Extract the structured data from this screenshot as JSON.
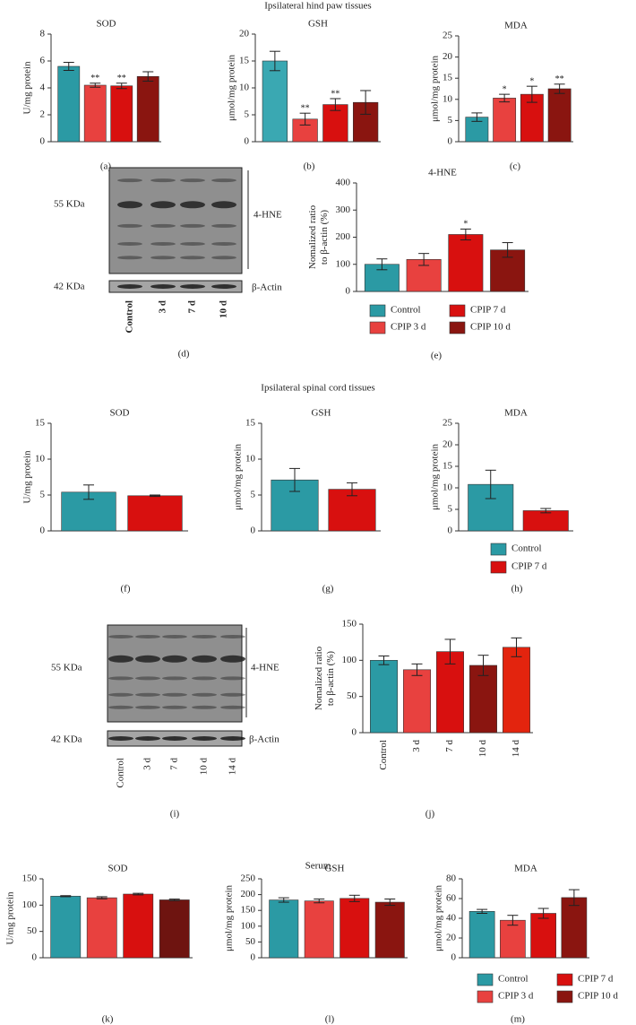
{
  "section_titles": [
    "Ipsilateral hind paw tissues",
    "Ipsilateral spinal cord tissues",
    "Serum"
  ],
  "chart_data": [
    {
      "type": "bar",
      "label": "(a)",
      "title": "SOD",
      "y_label": "U/mg protein",
      "values": [
        5.6,
        4.2,
        4.15,
        4.85
      ],
      "errors": [
        0.3,
        0.15,
        0.2,
        0.35
      ],
      "significance": [
        null,
        "**",
        "**",
        null
      ],
      "colors": [
        "#2b9aa4",
        "#e8413f",
        "#d8100f",
        "#8a1510"
      ],
      "ylim": [
        0,
        8
      ],
      "yticks": [
        0,
        2,
        4,
        6,
        8
      ]
    },
    {
      "type": "bar",
      "label": "(b)",
      "title": "GSH",
      "y_label": "μmol/mg protein",
      "values": [
        15,
        4.2,
        6.9,
        7.3
      ],
      "errors": [
        1.8,
        1.1,
        1.1,
        2.2
      ],
      "significance": [
        null,
        "**",
        "**",
        null
      ],
      "colors": [
        "#3aa8b2",
        "#e8413f",
        "#d8100f",
        "#8a1510"
      ],
      "ylim": [
        0,
        20
      ],
      "yticks": [
        0,
        5,
        10,
        15,
        20
      ]
    },
    {
      "type": "bar",
      "label": "(c)",
      "title": "MDA",
      "y_label": "μmol/mg protein",
      "values": [
        5.8,
        10.3,
        11.2,
        12.5
      ],
      "errors": [
        1,
        0.9,
        1.9,
        1.1
      ],
      "significance": [
        null,
        "*",
        "*",
        "**"
      ],
      "colors": [
        "#2b9aa4",
        "#e8413f",
        "#d8100f",
        "#8a1510"
      ],
      "ylim": [
        0,
        25
      ],
      "yticks": [
        0,
        5,
        10,
        15,
        20,
        25
      ]
    },
    {
      "type": "bar",
      "label": "(e)",
      "title": "4-HNE",
      "y_label": [
        "Nomalized ratio",
        "to β-actin (%)"
      ],
      "values": [
        100,
        118,
        210,
        153
      ],
      "errors": [
        20,
        22,
        20,
        27
      ],
      "significance": [
        null,
        null,
        "*",
        null
      ],
      "colors": [
        "#2b9aa4",
        "#e8413f",
        "#d8100f",
        "#8a1510"
      ],
      "ylim": [
        0,
        400
      ],
      "yticks": [
        0,
        100,
        200,
        300,
        400
      ]
    },
    {
      "type": "bar",
      "label": "(f)",
      "title": "SOD",
      "y_label": "U/mg protein",
      "values": [
        5.4,
        4.9
      ],
      "errors": [
        1,
        0.1
      ],
      "colors": [
        "#2b9aa4",
        "#d8100f"
      ],
      "ylim": [
        0,
        15
      ],
      "yticks": [
        0,
        5,
        10,
        15
      ]
    },
    {
      "type": "bar",
      "label": "(g)",
      "title": "GSH",
      "y_label": "μmol/mg protein",
      "values": [
        7.1,
        5.8
      ],
      "errors": [
        1.6,
        0.9
      ],
      "colors": [
        "#2b9aa4",
        "#d8100f"
      ],
      "ylim": [
        0,
        15
      ],
      "yticks": [
        0,
        5,
        10,
        15
      ]
    },
    {
      "type": "bar",
      "label": "(h)",
      "title": "MDA",
      "y_label": "μmol/mg protein",
      "values": [
        10.8,
        4.7
      ],
      "errors": [
        3.3,
        0.5
      ],
      "colors": [
        "#2b9aa4",
        "#d8100f"
      ],
      "ylim": [
        0,
        25
      ],
      "yticks": [
        0,
        5,
        10,
        15,
        20,
        25
      ]
    },
    {
      "type": "bar",
      "label": "(j)",
      "y_label": [
        "Nomalized ratio",
        "to β-actin (%)"
      ],
      "categories": [
        "Control",
        "3 d",
        "7 d",
        "10 d",
        "14 d"
      ],
      "values": [
        100,
        87,
        112,
        93,
        118
      ],
      "errors": [
        6,
        8,
        17,
        14,
        13
      ],
      "colors": [
        "#2b9aa4",
        "#e8413f",
        "#d8100f",
        "#8a1510",
        "#e3240e"
      ],
      "ylim": [
        0,
        150
      ],
      "yticks": [
        0,
        50,
        100,
        150
      ]
    },
    {
      "type": "bar",
      "label": "(k)",
      "title": "SOD",
      "y_label": "U/mg protein",
      "values": [
        117,
        114,
        121,
        110
      ],
      "errors": [
        1,
        2,
        1.5,
        1.5
      ],
      "colors": [
        "#2b9aa4",
        "#e8413f",
        "#d8100f",
        "#6e1410"
      ],
      "ylim": [
        0,
        150
      ],
      "yticks": [
        0,
        50,
        100,
        150
      ]
    },
    {
      "type": "bar",
      "label": "(l)",
      "title": "GSH",
      "y_label": "μmol/mg protein",
      "values": [
        183,
        180,
        188,
        176
      ],
      "errors": [
        7,
        6,
        10,
        10
      ],
      "colors": [
        "#2b9aa4",
        "#e8413f",
        "#d8100f",
        "#8a1510"
      ],
      "ylim": [
        0,
        250
      ],
      "yticks": [
        0,
        50,
        100,
        150,
        200,
        250
      ]
    },
    {
      "type": "bar",
      "label": "(m)",
      "title": "MDA",
      "y_label": "μmol/mg protein",
      "values": [
        47,
        38,
        45,
        61
      ],
      "errors": [
        2,
        5,
        5,
        8
      ],
      "colors": [
        "#2b9aa4",
        "#e8413f",
        "#d8100f",
        "#8a1510"
      ],
      "ylim": [
        0,
        80
      ],
      "yticks": [
        0,
        20,
        40,
        60,
        80
      ]
    }
  ],
  "legends": [
    {
      "items": [
        {
          "name": "Control",
          "color": "#2b9aa4"
        },
        {
          "name": "CPIP 3 d",
          "color": "#e8413f"
        },
        {
          "name": "CPIP 7 d",
          "color": "#d8100f"
        },
        {
          "name": "CPIP 10 d",
          "color": "#8a1510"
        }
      ]
    },
    {
      "items": [
        {
          "name": "Control",
          "color": "#2b9aa4"
        },
        {
          "name": "CPIP 7 d",
          "color": "#d8100f"
        }
      ]
    },
    {
      "items": [
        {
          "name": "Control",
          "color": "#2b9aa4"
        },
        {
          "name": "CPIP 3 d",
          "color": "#e8413f"
        },
        {
          "name": "CPIP 7 d",
          "color": "#d8100f"
        },
        {
          "name": "CPIP 10 d",
          "color": "#8a1510"
        }
      ]
    }
  ],
  "blots": [
    {
      "label": "(d)",
      "marker_top": "55 KDa",
      "marker_bottom": "42 KDa",
      "band_top": "4-HNE",
      "band_bottom": "β-Actin",
      "lanes": [
        "Control",
        "3 d",
        "7 d",
        "10 d"
      ]
    },
    {
      "label": "(i)",
      "marker_top": "55 KDa",
      "marker_bottom": "42 KDa",
      "band_top": "4-HNE",
      "band_bottom": "β-Actin",
      "lanes": [
        "Control",
        "3 d",
        "7 d",
        "10 d",
        "14 d"
      ]
    }
  ]
}
